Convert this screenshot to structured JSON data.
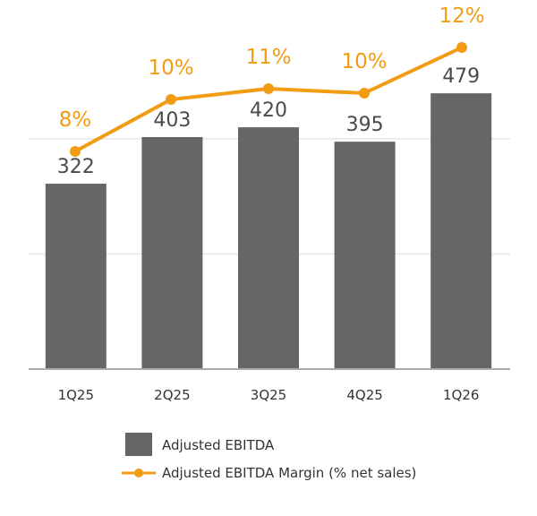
{
  "chart_data": {
    "type": "bar",
    "categories": [
      "1Q25",
      "2Q25",
      "3Q25",
      "4Q25",
      "1Q26"
    ],
    "series": [
      {
        "name": "Adjusted EBITDA",
        "type": "bar",
        "values": [
          322,
          403,
          420,
          395,
          479
        ],
        "labels": [
          "322",
          "403",
          "420",
          "395",
          "479"
        ],
        "color": "#666666"
      },
      {
        "name": "Adjusted EBITDA Margin (% net sales)",
        "type": "line",
        "values": [
          8,
          10,
          11,
          10,
          12
        ],
        "labels": [
          "8%",
          "10%",
          "11%",
          "10%",
          "12%"
        ],
        "color": "#f29c14"
      }
    ],
    "ylim": [
      0,
      600
    ],
    "grid": true,
    "legend": "bottom-center",
    "colors": {
      "axis": "#aaaaaa",
      "grid": "#e6e6e6"
    }
  }
}
